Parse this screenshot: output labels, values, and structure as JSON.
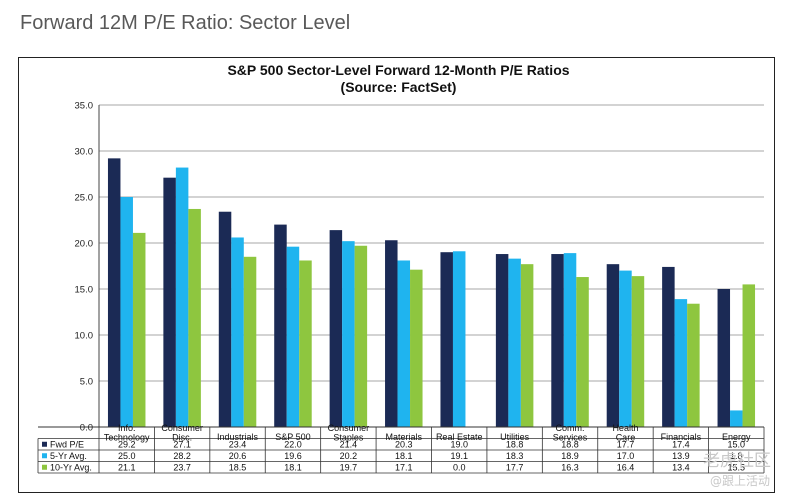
{
  "slide_title": "Forward 12M P/E Ratio: Sector Level",
  "watermark": {
    "line1": "老虎社区",
    "line2": "@跟上活动"
  },
  "colors": {
    "fwd": "#1b2a55",
    "five": "#1fb4ef",
    "ten": "#8ec63f",
    "grid": "#8a8a8a"
  },
  "chart_data": {
    "type": "bar",
    "title": "S&P 500 Sector-Level Forward 12-Month P/E Ratios",
    "subtitle": "(Source: FactSet)",
    "ylim": [
      0,
      35
    ],
    "yticks": [
      "0.0",
      "5.0",
      "10.0",
      "15.0",
      "20.0",
      "25.0",
      "30.0",
      "35.0"
    ],
    "grid": true,
    "legend": "table-bottom",
    "categories": [
      [
        "Info.",
        "Technology"
      ],
      [
        "Consumer",
        "Disc."
      ],
      [
        "Industrials"
      ],
      [
        "S&P 500"
      ],
      [
        "Consumer",
        "Staples"
      ],
      [
        "Materials"
      ],
      [
        "Real Estate"
      ],
      [
        "Utilities"
      ],
      [
        "Comm.",
        "Services"
      ],
      [
        "Health",
        "Care"
      ],
      [
        "Financials"
      ],
      [
        "Energy"
      ]
    ],
    "series": [
      {
        "name": "Fwd P/E",
        "color_key": "fwd",
        "values": [
          29.2,
          27.1,
          23.4,
          22.0,
          21.4,
          20.3,
          19.0,
          18.8,
          18.8,
          17.7,
          17.4,
          15.0
        ],
        "labels": [
          "29.2",
          "27.1",
          "23.4",
          "22.0",
          "21.4",
          "20.3",
          "19.0",
          "18.8",
          "18.8",
          "17.7",
          "17.4",
          "15.0"
        ]
      },
      {
        "name": "5-Yr Avg.",
        "color_key": "five",
        "values": [
          25.0,
          28.2,
          20.6,
          19.6,
          20.2,
          18.1,
          19.1,
          18.3,
          18.9,
          17.0,
          13.9,
          1.8
        ],
        "labels": [
          "25.0",
          "28.2",
          "20.6",
          "19.6",
          "20.2",
          "18.1",
          "19.1",
          "18.3",
          "18.9",
          "17.0",
          "13.9",
          "1.8"
        ]
      },
      {
        "name": "10-Yr Avg.",
        "color_key": "ten",
        "values": [
          21.1,
          23.7,
          18.5,
          18.1,
          19.7,
          17.1,
          0.0,
          17.7,
          16.3,
          16.4,
          13.4,
          15.5
        ],
        "labels": [
          "21.1",
          "23.7",
          "18.5",
          "18.1",
          "19.7",
          "17.1",
          "0.0",
          "17.7",
          "16.3",
          "16.4",
          "13.4",
          "15.5"
        ]
      }
    ]
  }
}
